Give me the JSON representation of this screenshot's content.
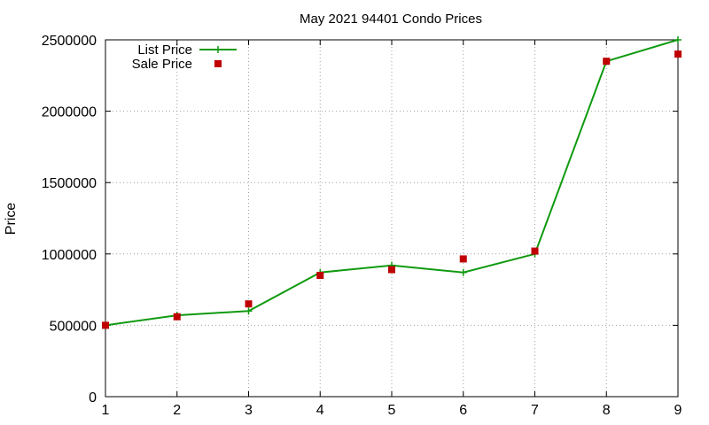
{
  "chart_data": {
    "type": "line",
    "title": "May 2021 94401 Condo Prices",
    "xlabel": "",
    "ylabel": "Price",
    "x": [
      1,
      2,
      3,
      4,
      5,
      6,
      7,
      8,
      9
    ],
    "xlim": [
      1,
      9
    ],
    "ylim": [
      0,
      2500000
    ],
    "x_ticks": [
      "1",
      "2",
      "3",
      "4",
      "5",
      "6",
      "7",
      "8",
      "9"
    ],
    "y_ticks": [
      "0",
      "500000",
      "1000000",
      "1500000",
      "2000000",
      "2500000"
    ],
    "grid": true,
    "legend_position": "top-left",
    "series": [
      {
        "name": "List Price",
        "style": "line-with-plus-markers",
        "color": "#109a10",
        "values": [
          500000,
          570000,
          600000,
          870000,
          920000,
          870000,
          1000000,
          2350000,
          2500000
        ]
      },
      {
        "name": "Sale Price",
        "style": "square-markers",
        "color": "#c00000",
        "values": [
          500000,
          560000,
          650000,
          850000,
          890000,
          965000,
          1020000,
          2350000,
          2400000
        ]
      }
    ]
  }
}
